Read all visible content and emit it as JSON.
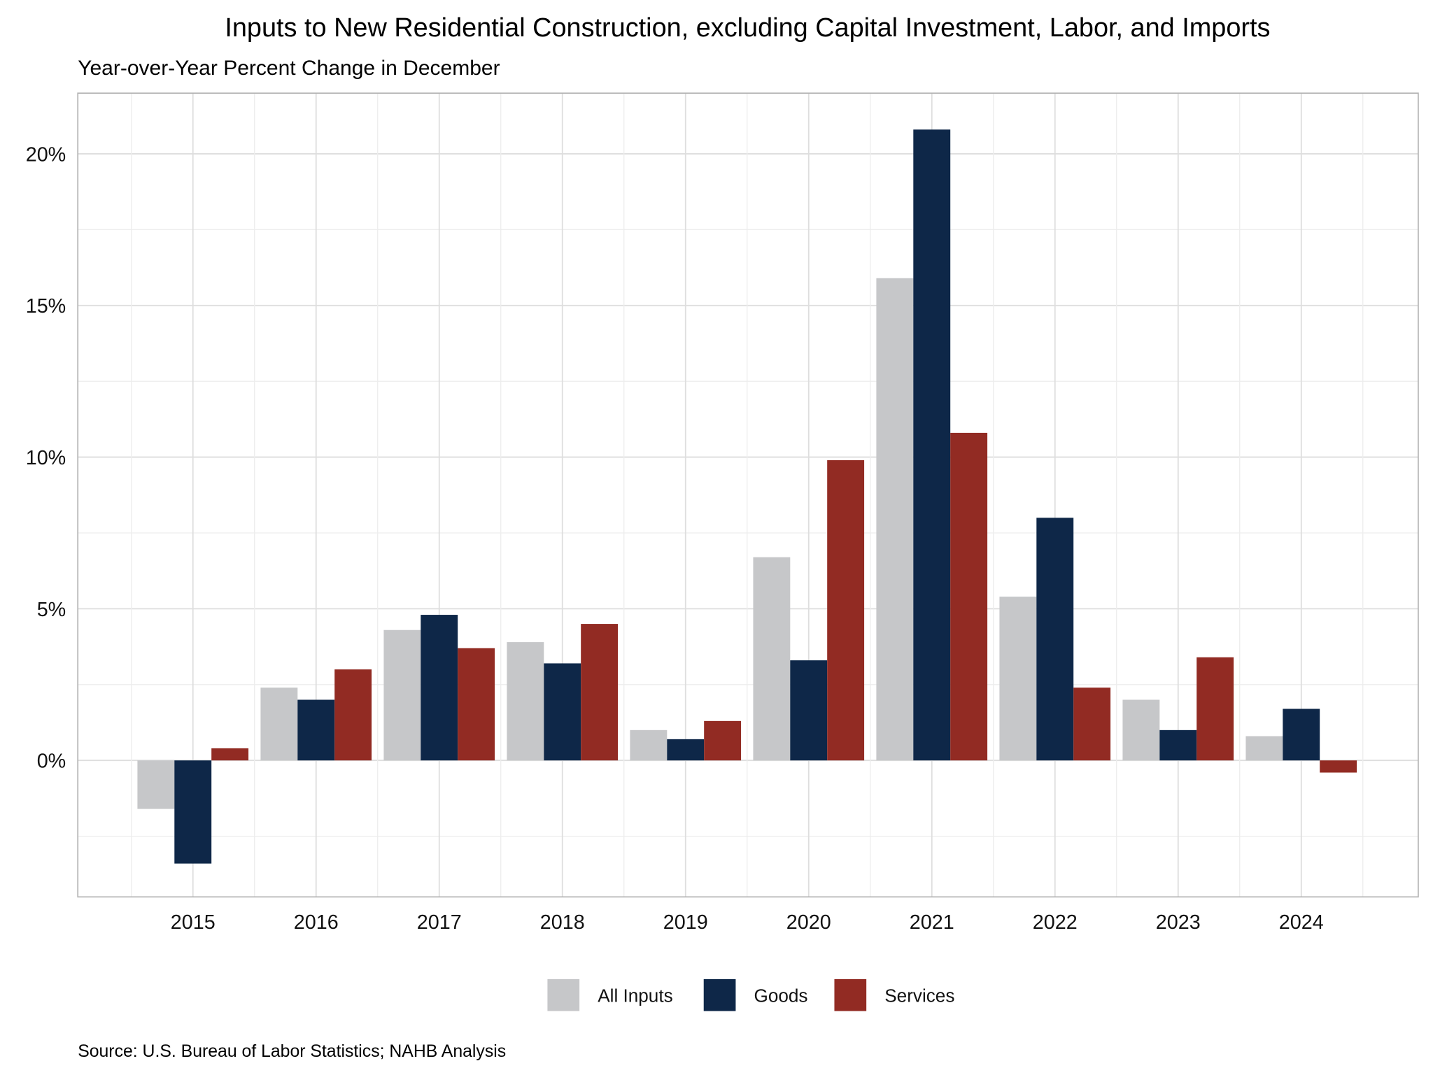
{
  "chart_data": {
    "type": "bar",
    "title": "Inputs to New Residential Construction, excluding Capital Investment, Labor, and Imports",
    "subtitle": "Year-over-Year Percent Change in December",
    "caption": "Source: U.S. Bureau of Labor Statistics; NAHB Analysis",
    "xlabel": "",
    "ylabel": "",
    "categories": [
      "2015",
      "2016",
      "2017",
      "2018",
      "2019",
      "2020",
      "2021",
      "2022",
      "2023",
      "2024"
    ],
    "series": [
      {
        "name": "All Inputs",
        "color": "#c6c7c9",
        "values": [
          -1.6,
          2.4,
          4.3,
          3.9,
          1.0,
          6.7,
          15.9,
          5.4,
          2.0,
          0.8
        ]
      },
      {
        "name": "Goods",
        "color": "#0e2748",
        "values": [
          -3.4,
          2.0,
          4.8,
          3.2,
          0.7,
          3.3,
          20.8,
          8.0,
          1.0,
          1.7
        ]
      },
      {
        "name": "Services",
        "color": "#922b23",
        "values": [
          0.4,
          3.0,
          3.7,
          4.5,
          1.3,
          9.9,
          10.8,
          2.4,
          3.4,
          -0.4
        ]
      }
    ],
    "ylim": [
      -4.5,
      22
    ],
    "yticks": [
      0,
      5,
      10,
      15,
      20
    ],
    "ytick_labels": [
      "0%",
      "5%",
      "10%",
      "15%",
      "20%"
    ],
    "grid": true,
    "legend_position": "bottom"
  }
}
